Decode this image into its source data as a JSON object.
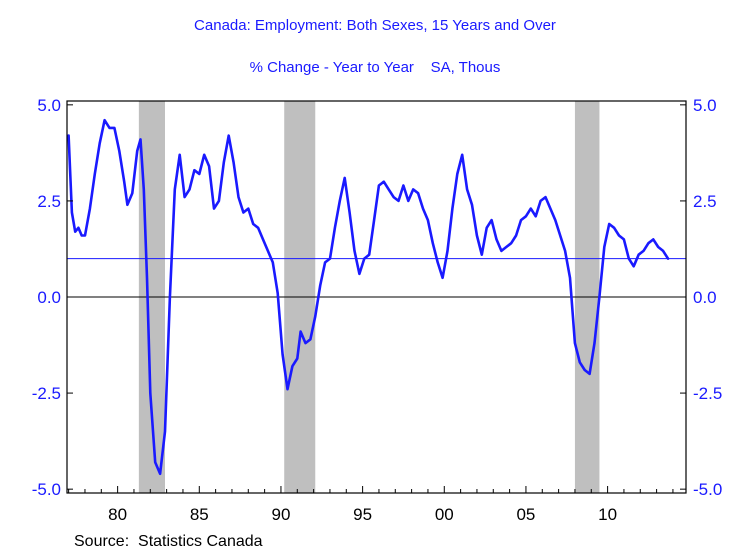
{
  "chart_data": {
    "type": "line",
    "title": "Canada: Employment: Both Sexes, 15 Years and Over",
    "subtitle": "% Change - Year to Year    SA, Thous",
    "source": "Source:  Statistics Canada",
    "xlim": [
      1976.9,
      2014.8
    ],
    "ylim": [
      -5.1,
      5.1
    ],
    "x_ticks": [
      {
        "value": 1980,
        "label": "80"
      },
      {
        "value": 1985,
        "label": "85"
      },
      {
        "value": 1990,
        "label": "90"
      },
      {
        "value": 1995,
        "label": "95"
      },
      {
        "value": 2000,
        "label": "00"
      },
      {
        "value": 2005,
        "label": "05"
      },
      {
        "value": 2010,
        "label": "10"
      }
    ],
    "y_ticks": [
      {
        "value": 5.0,
        "label": "5.0"
      },
      {
        "value": 2.5,
        "label": "2.5"
      },
      {
        "value": 0.0,
        "label": "0.0"
      },
      {
        "value": -2.5,
        "label": "-2.5"
      },
      {
        "value": -5.0,
        "label": "-5.0"
      }
    ],
    "y_ticks_right": [
      {
        "value": 5.0,
        "label": "5.0"
      },
      {
        "value": 2.5,
        "label": "2.5"
      },
      {
        "value": 0.0,
        "label": "0.0"
      },
      {
        "value": -2.5,
        "label": "-2.5"
      },
      {
        "value": -5.0,
        "label": "-5.0"
      }
    ],
    "recessions": [
      [
        1981.3,
        1982.9
      ],
      [
        1990.2,
        1992.1
      ],
      [
        2008.0,
        2009.5
      ]
    ],
    "reference_lines": [
      {
        "value": 1.0,
        "color": "#1a1aff"
      },
      {
        "value": 0.0,
        "color": "#000000"
      }
    ],
    "series": [
      {
        "color": "#1a1aff",
        "x": [
          1977.0,
          1977.2,
          1977.4,
          1977.6,
          1977.8,
          1978.0,
          1978.3,
          1978.6,
          1978.9,
          1979.2,
          1979.5,
          1979.8,
          1980.1,
          1980.4,
          1980.6,
          1980.9,
          1981.2,
          1981.4,
          1981.6,
          1981.8,
          1982.0,
          1982.3,
          1982.6,
          1982.9,
          1983.2,
          1983.5,
          1983.8,
          1984.1,
          1984.4,
          1984.7,
          1985.0,
          1985.3,
          1985.6,
          1985.9,
          1986.2,
          1986.5,
          1986.8,
          1987.1,
          1987.4,
          1987.7,
          1988.0,
          1988.3,
          1988.6,
          1988.9,
          1989.2,
          1989.5,
          1989.8,
          1990.1,
          1990.4,
          1990.7,
          1991.0,
          1991.2,
          1991.5,
          1991.8,
          1992.1,
          1992.4,
          1992.7,
          1993.0,
          1993.3,
          1993.6,
          1993.9,
          1994.2,
          1994.5,
          1994.8,
          1995.1,
          1995.4,
          1995.7,
          1996.0,
          1996.3,
          1996.6,
          1996.9,
          1997.2,
          1997.5,
          1997.8,
          1998.1,
          1998.4,
          1998.7,
          1999.0,
          1999.3,
          1999.6,
          1999.9,
          2000.2,
          2000.5,
          2000.8,
          2001.1,
          2001.4,
          2001.7,
          2002.0,
          2002.3,
          2002.6,
          2002.9,
          2003.2,
          2003.5,
          2003.8,
          2004.1,
          2004.4,
          2004.7,
          2005.0,
          2005.3,
          2005.6,
          2005.9,
          2006.2,
          2006.5,
          2006.8,
          2007.1,
          2007.4,
          2007.7,
          2008.0,
          2008.3,
          2008.6,
          2008.9,
          2009.2,
          2009.5,
          2009.8,
          2010.1,
          2010.4,
          2010.7,
          2011.0,
          2011.3,
          2011.6,
          2011.9,
          2012.2,
          2012.5,
          2012.8,
          2013.1,
          2013.4,
          2013.7
        ],
        "y": [
          4.2,
          2.2,
          1.7,
          1.8,
          1.6,
          1.6,
          2.3,
          3.2,
          4.0,
          4.6,
          4.4,
          4.4,
          3.8,
          3.0,
          2.4,
          2.7,
          3.8,
          4.1,
          2.8,
          0.5,
          -2.5,
          -4.3,
          -4.6,
          -3.5,
          0.0,
          2.8,
          3.7,
          2.6,
          2.8,
          3.3,
          3.2,
          3.7,
          3.4,
          2.3,
          2.5,
          3.5,
          4.2,
          3.5,
          2.6,
          2.2,
          2.3,
          1.9,
          1.8,
          1.5,
          1.2,
          0.9,
          0.1,
          -1.5,
          -2.4,
          -1.8,
          -1.6,
          -0.9,
          -1.2,
          -1.1,
          -0.5,
          0.3,
          0.9,
          1.0,
          1.8,
          2.5,
          3.1,
          2.2,
          1.2,
          0.6,
          1.0,
          1.1,
          2.0,
          2.9,
          3.0,
          2.8,
          2.6,
          2.5,
          2.9,
          2.5,
          2.8,
          2.7,
          2.3,
          2.0,
          1.4,
          0.9,
          0.5,
          1.2,
          2.3,
          3.2,
          3.7,
          2.8,
          2.4,
          1.6,
          1.1,
          1.8,
          2.0,
          1.5,
          1.2,
          1.3,
          1.4,
          1.6,
          2.0,
          2.1,
          2.3,
          2.1,
          2.5,
          2.6,
          2.3,
          2.0,
          1.6,
          1.2,
          0.5,
          -1.2,
          -1.7,
          -1.9,
          -2.0,
          -1.2,
          0.0,
          1.3,
          1.9,
          1.8,
          1.6,
          1.5,
          1.0,
          0.8,
          1.1,
          1.2,
          1.4,
          1.5,
          1.3,
          1.2,
          1.0
        ]
      }
    ]
  }
}
